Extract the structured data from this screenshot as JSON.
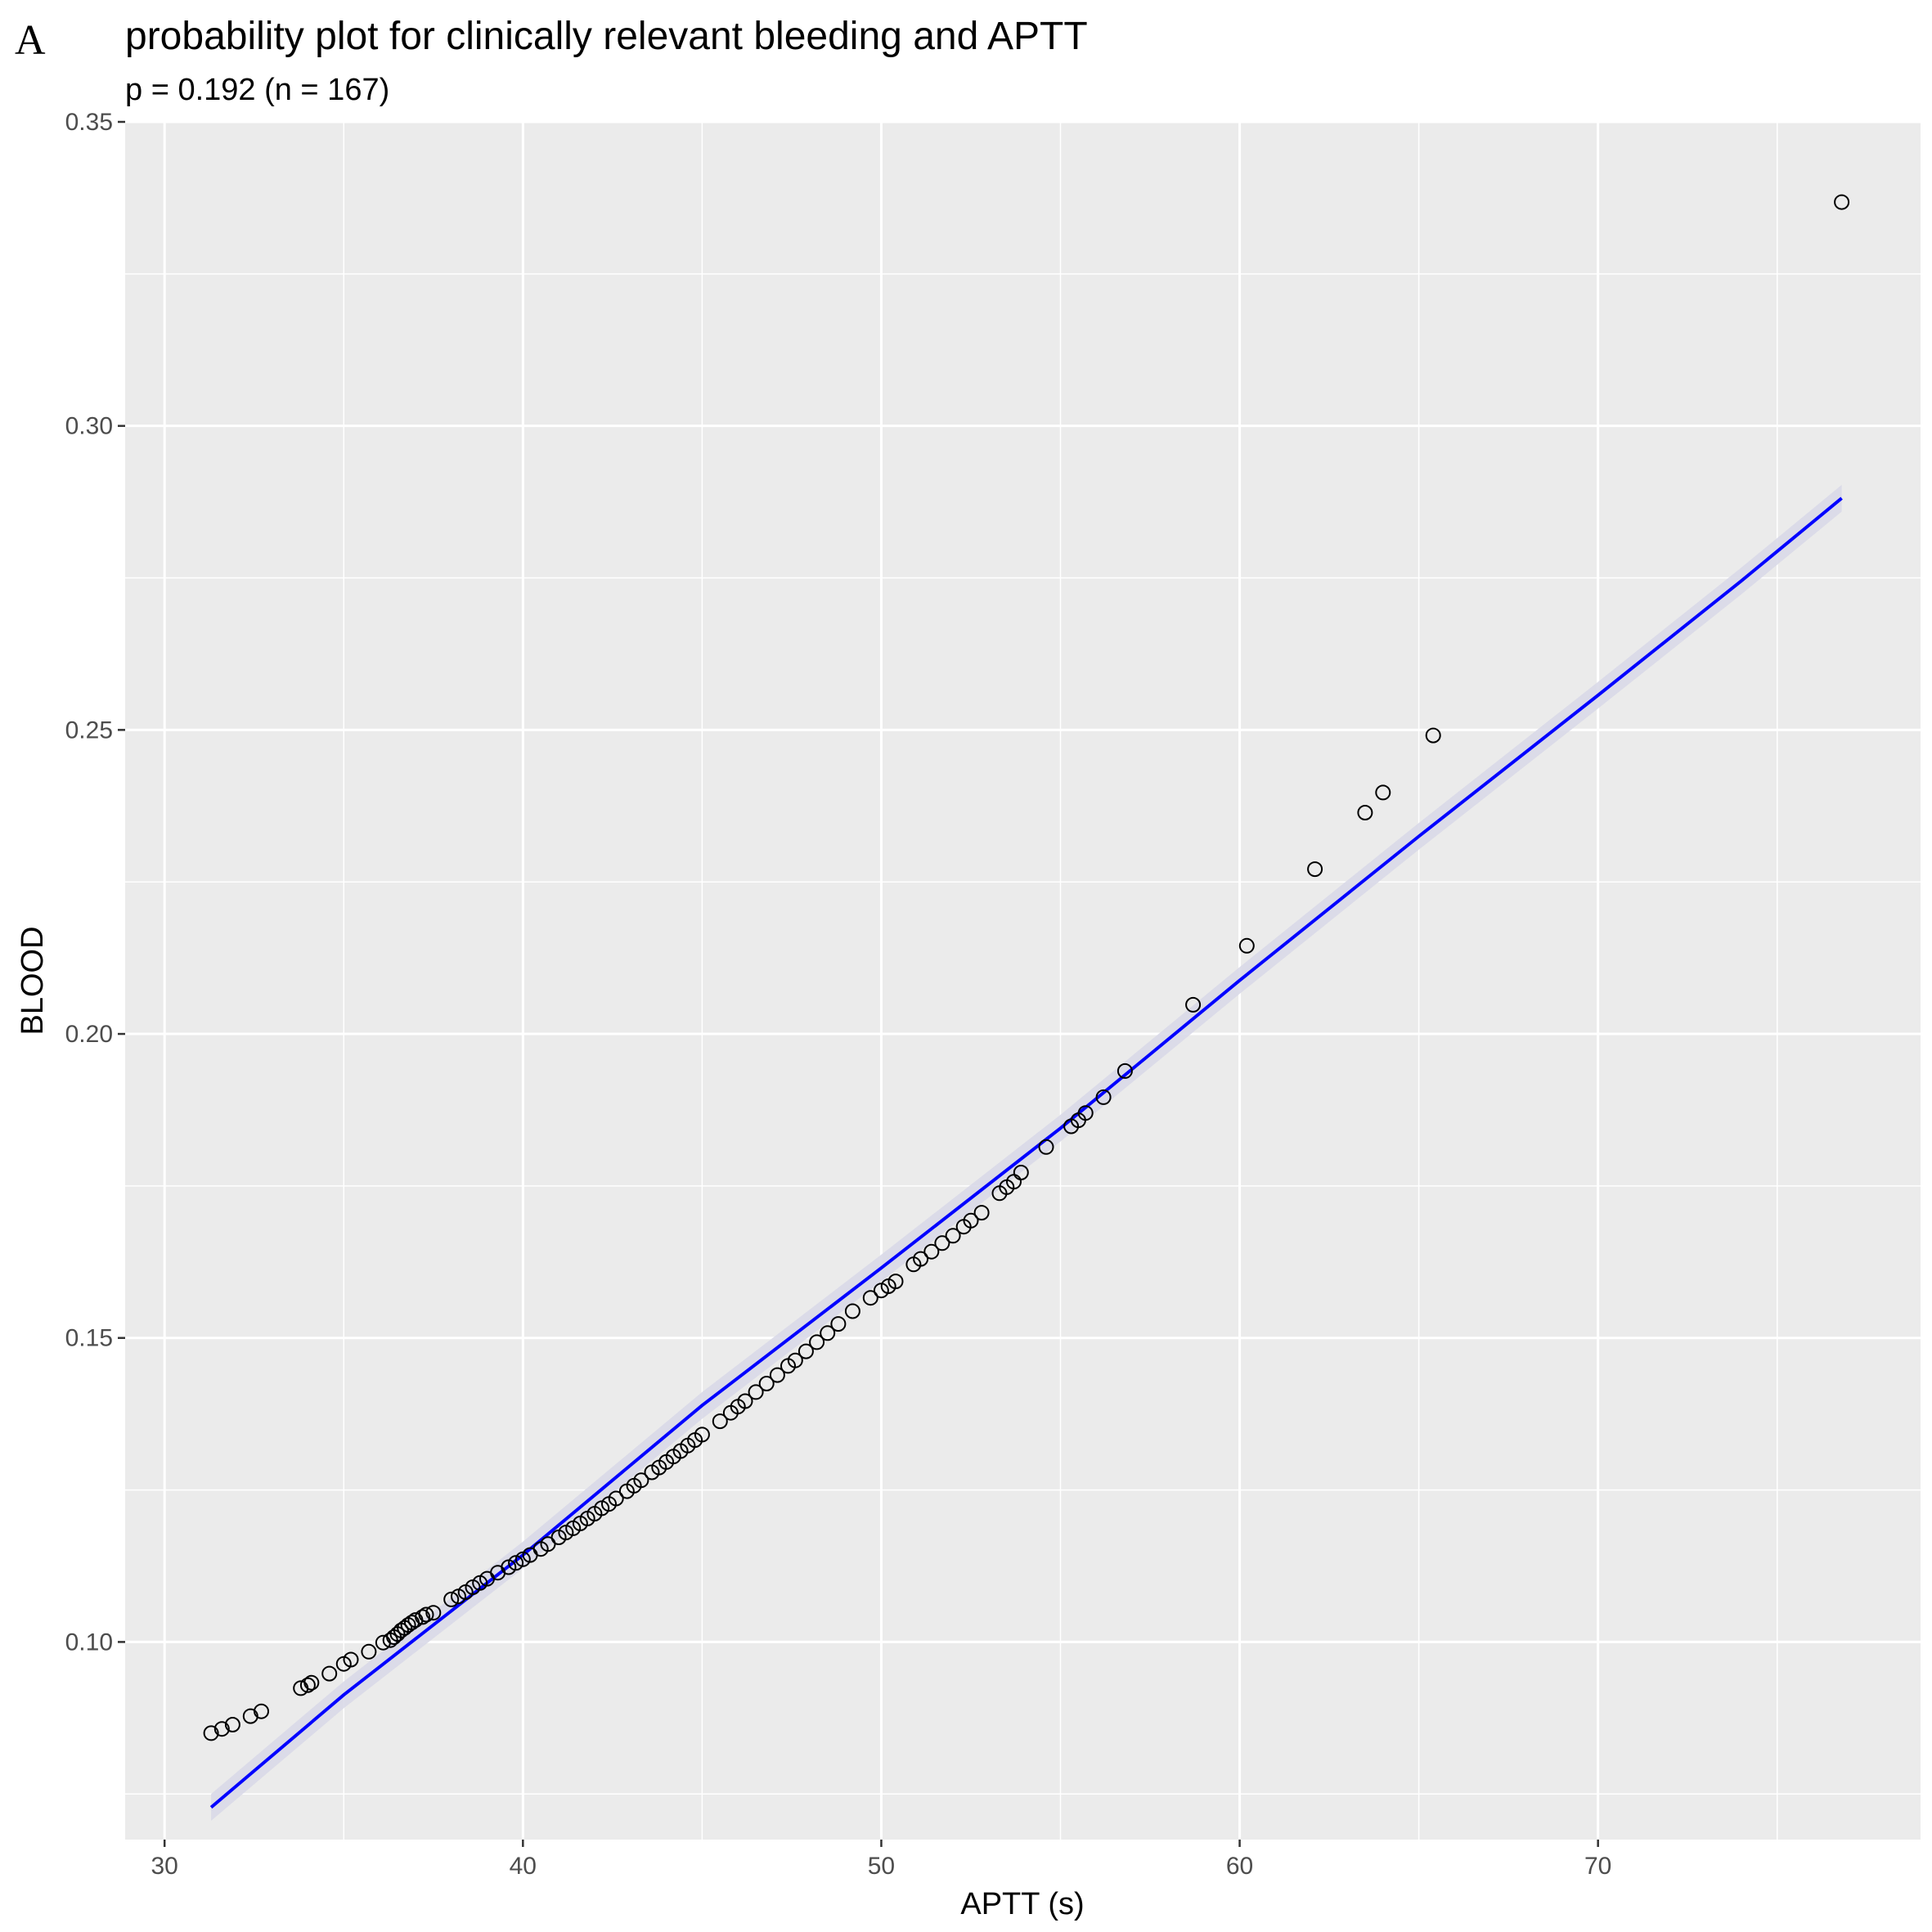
{
  "panel_label": "A",
  "chart_data": {
    "type": "scatter",
    "title": "probability plot for clinically relevant bleeding and APTT",
    "subtitle": "p = 0.192 (n = 167)",
    "xlabel": "APTT (s)",
    "ylabel": "BLOOD",
    "xlim": [
      28.9,
      79.0
    ],
    "ylim": [
      0.0675,
      0.35
    ],
    "x_ticks": [
      30,
      40,
      50,
      60,
      70
    ],
    "y_ticks": [
      0.1,
      0.15,
      0.2,
      0.25,
      0.3,
      0.35
    ],
    "x_tick_labels": [
      "30",
      "40",
      "50",
      "60",
      "70"
    ],
    "y_tick_labels": [
      "0.10",
      "0.15",
      "0.20",
      "0.25",
      "0.30",
      "0.35"
    ],
    "grid": true,
    "background_color": "#ebebeb",
    "grid_color": "#ffffff",
    "point_style": "open-circle",
    "point_color": "#000000",
    "line_color": "#0000ff",
    "band_color": "#d9d9e8",
    "series": [
      {
        "type": "points",
        "x": [
          31.3,
          31.6,
          31.9,
          32.4,
          32.7,
          33.8,
          34.0,
          34.1,
          34.6,
          35.0,
          35.2,
          35.7,
          36.1,
          36.3,
          36.4,
          36.5,
          36.6,
          36.7,
          36.8,
          36.9,
          37.0,
          37.2,
          37.3,
          37.5,
          38.0,
          38.2,
          38.4,
          38.6,
          38.8,
          39.0,
          39.3,
          39.6,
          39.8,
          40.0,
          40.2,
          40.5,
          40.7,
          41.0,
          41.2,
          41.4,
          41.6,
          41.8,
          42.0,
          42.2,
          42.4,
          42.6,
          42.9,
          43.1,
          43.3,
          43.6,
          43.8,
          44.0,
          44.2,
          44.4,
          44.6,
          44.8,
          45.0,
          45.5,
          45.8,
          46.0,
          46.2,
          46.5,
          46.8,
          47.1,
          47.4,
          47.6,
          47.9,
          48.2,
          48.5,
          48.8,
          49.2,
          49.7,
          50.0,
          50.2,
          50.4,
          50.9,
          51.1,
          51.4,
          51.7,
          52.0,
          52.3,
          52.5,
          52.8,
          53.3,
          53.5,
          53.7,
          53.9,
          54.6,
          55.3,
          55.5,
          55.7,
          56.2,
          56.8,
          58.7,
          60.2,
          62.1,
          63.5,
          64.0,
          65.4,
          76.8
        ],
        "y": [
          0.085,
          0.0857,
          0.0864,
          0.0878,
          0.0886,
          0.0924,
          0.0929,
          0.0933,
          0.0948,
          0.0964,
          0.0971,
          0.0984,
          0.0999,
          0.1003,
          0.1008,
          0.1013,
          0.1019,
          0.1023,
          0.1028,
          0.1032,
          0.1036,
          0.1041,
          0.1045,
          0.1048,
          0.107,
          0.1075,
          0.1082,
          0.109,
          0.1097,
          0.1104,
          0.1114,
          0.1123,
          0.113,
          0.1136,
          0.1143,
          0.1153,
          0.1161,
          0.1172,
          0.118,
          0.1187,
          0.1195,
          0.1203,
          0.1211,
          0.122,
          0.1227,
          0.1236,
          0.1248,
          0.1257,
          0.1266,
          0.1279,
          0.1287,
          0.1296,
          0.1305,
          0.1314,
          0.1323,
          0.1332,
          0.1341,
          0.1363,
          0.1377,
          0.1387,
          0.1396,
          0.1411,
          0.1425,
          0.1439,
          0.1454,
          0.1463,
          0.1478,
          0.1493,
          0.1508,
          0.1523,
          0.1544,
          0.1566,
          0.1578,
          0.1585,
          0.1593,
          0.1621,
          0.163,
          0.1642,
          0.1656,
          0.1668,
          0.1683,
          0.1693,
          0.1706,
          0.1738,
          0.1748,
          0.1757,
          0.1772,
          0.1814,
          0.1848,
          0.1858,
          0.187,
          0.1896,
          0.1939,
          0.2048,
          0.2145,
          0.2271,
          0.2364,
          0.2397,
          0.2491,
          0.3368
        ]
      },
      {
        "type": "fit-line",
        "x": [
          31.3,
          35.0,
          40.0,
          45.0,
          50.0,
          55.0,
          60.0,
          65.0,
          70.0,
          74.0,
          76.8
        ],
        "y": [
          0.0728,
          0.0913,
          0.1143,
          0.1389,
          0.1615,
          0.1845,
          0.2088,
          0.2325,
          0.2557,
          0.2745,
          0.2881
        ]
      }
    ]
  }
}
